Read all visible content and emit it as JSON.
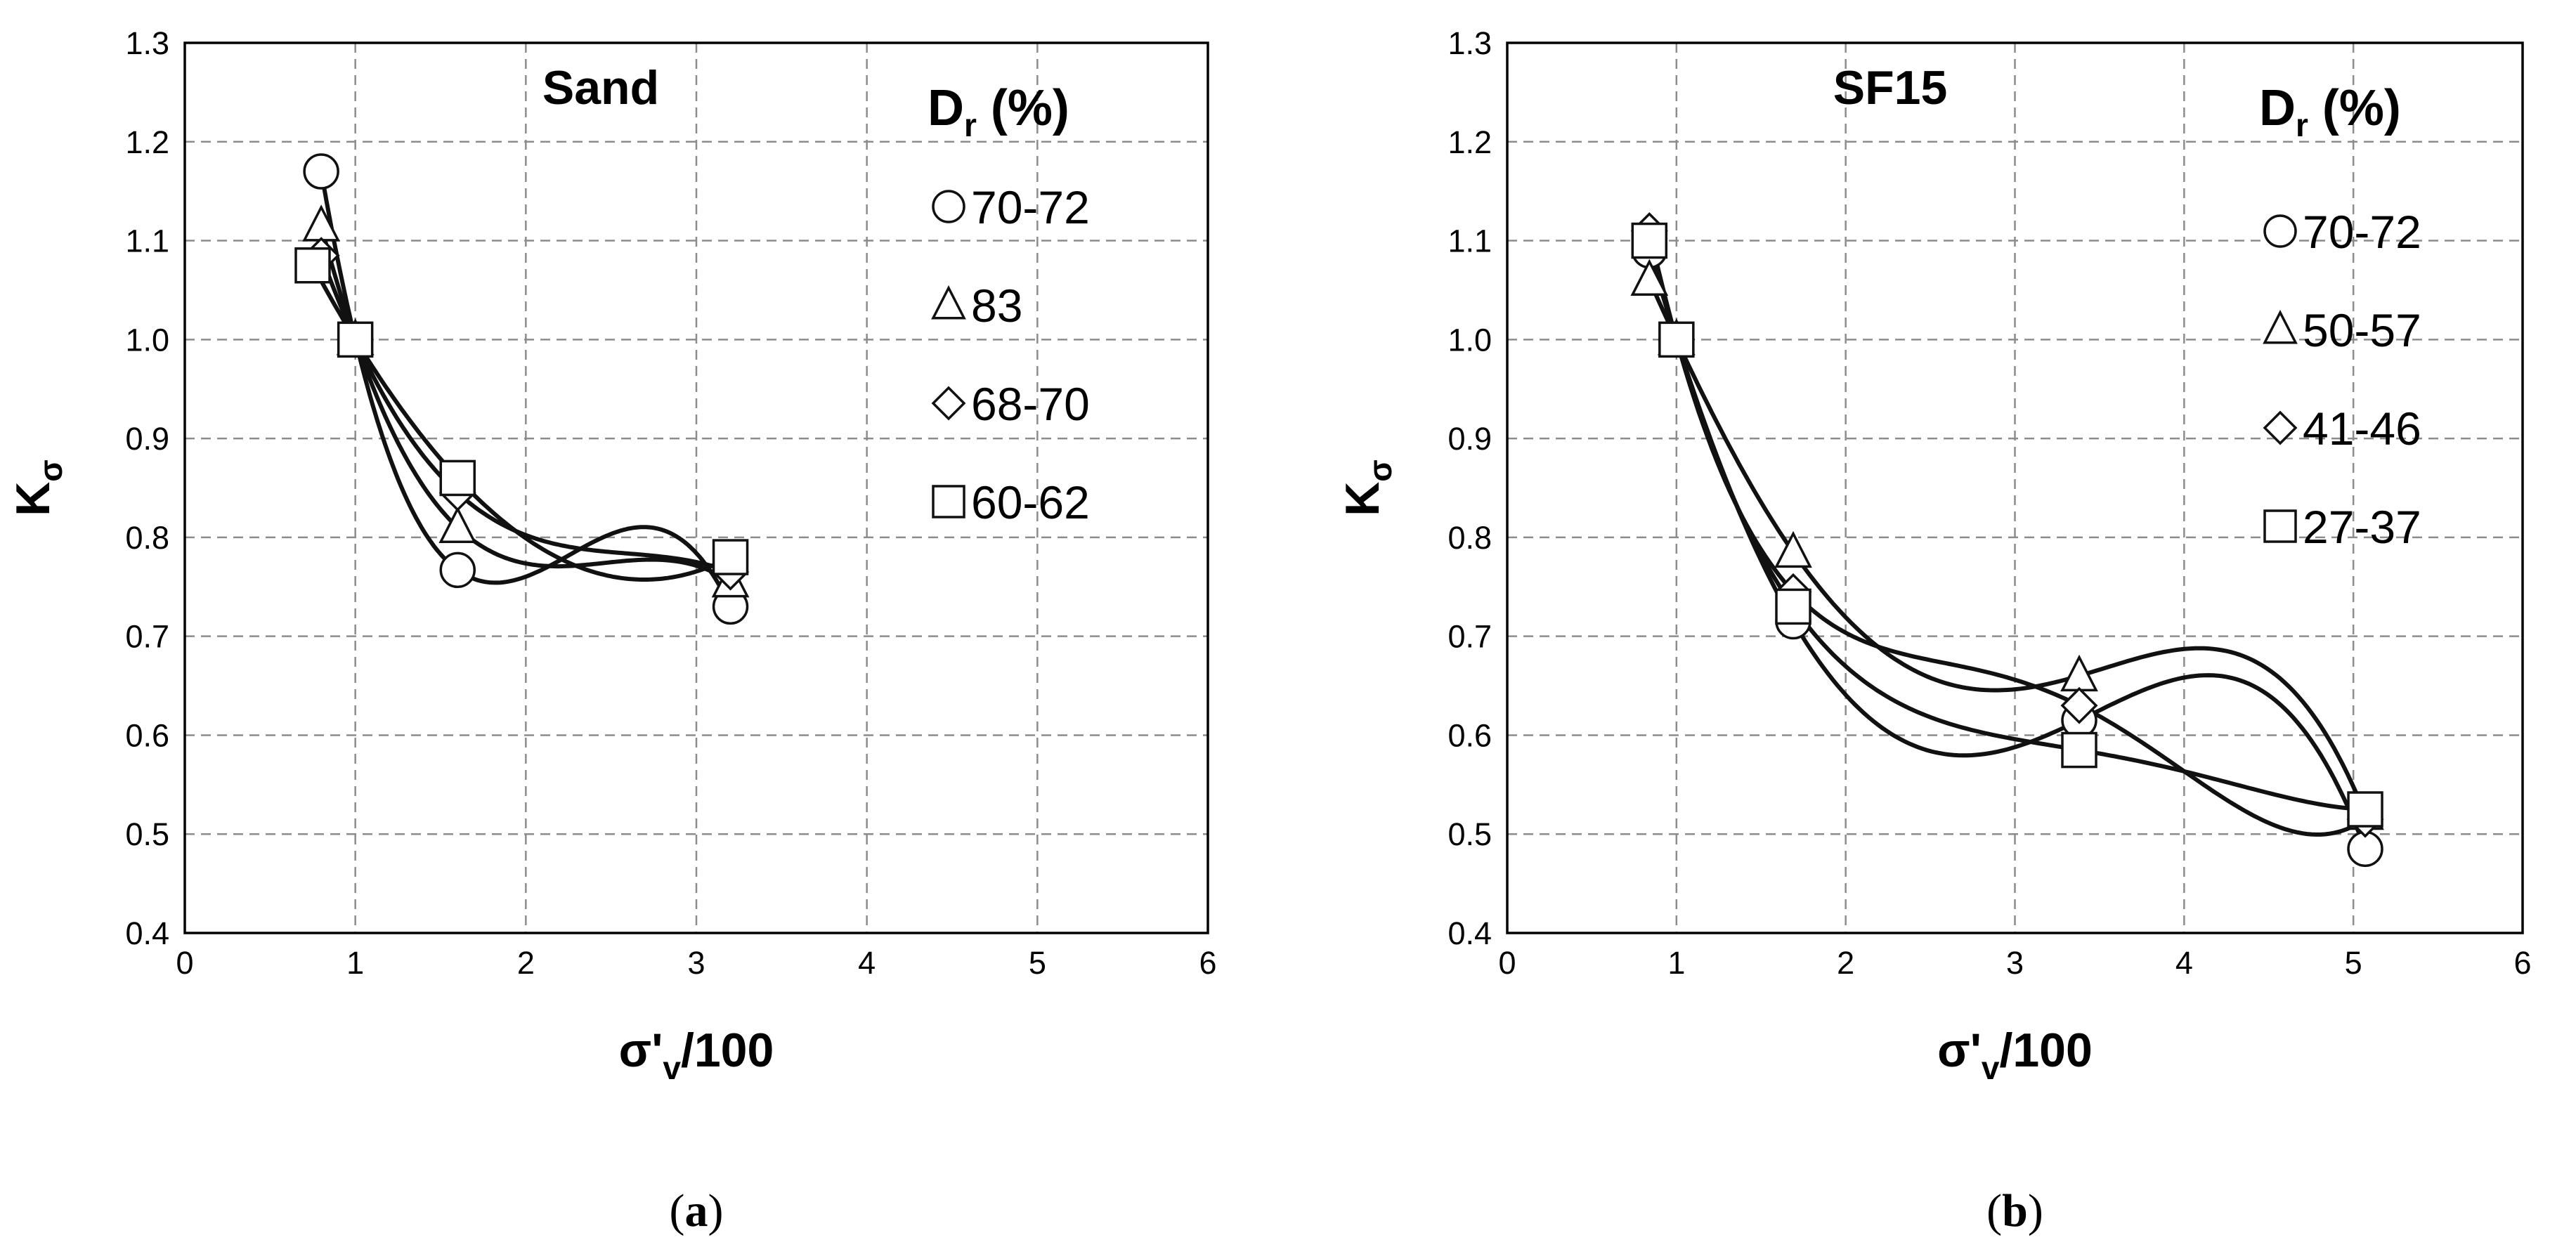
{
  "chart_data": [
    {
      "type": "scatter",
      "panel_caption": "a",
      "title": "Sand",
      "xlabel": "σ'",
      "xlabel_sub": "v",
      "xlabel_suffix": "/100",
      "ylabel": "K",
      "ylabel_sub": "σ",
      "xlim": [
        0,
        6
      ],
      "ylim": [
        0.4,
        1.3
      ],
      "x_ticks": [
        0,
        1,
        2,
        3,
        4,
        5,
        6
      ],
      "y_ticks": [
        0.4,
        0.5,
        0.6,
        0.7,
        0.8,
        0.9,
        1.0,
        1.1,
        1.2,
        1.3
      ],
      "x_tick_labels": [
        "0",
        "1",
        "2",
        "3",
        "4",
        "5",
        "6"
      ],
      "y_tick_labels": [
        "0.4",
        "0.5",
        "0.6",
        "0.7",
        "0.8",
        "0.9",
        "1.0",
        "1.1",
        "1.2",
        "1.3"
      ],
      "grid": true,
      "legend": {
        "title": "D",
        "title_sub": "r",
        "title_suffix": " (%)",
        "placement": "top-right"
      },
      "series": [
        {
          "name": "70-72",
          "marker": "circle",
          "x": [
            0.8,
            1.0,
            1.6,
            3.2
          ],
          "y": [
            1.17,
            1.0,
            0.767,
            0.73
          ]
        },
        {
          "name": "83",
          "marker": "triangle",
          "x": [
            0.8,
            1.0,
            1.6,
            3.2
          ],
          "y": [
            1.115,
            1.0,
            0.81,
            0.755
          ]
        },
        {
          "name": "68-70",
          "marker": "diamond",
          "x": [
            0.8,
            1.0,
            1.6,
            3.2
          ],
          "y": [
            1.085,
            1.0,
            0.845,
            0.765
          ]
        },
        {
          "name": "60-62",
          "marker": "square",
          "x": [
            0.75,
            1.0,
            1.6,
            3.2
          ],
          "y": [
            1.075,
            1.0,
            0.86,
            0.78
          ]
        }
      ]
    },
    {
      "type": "scatter",
      "panel_caption": "b",
      "title": "SF15",
      "xlabel": "σ'",
      "xlabel_sub": "v",
      "xlabel_suffix": "/100",
      "ylabel": "K",
      "ylabel_sub": "σ",
      "xlim": [
        0,
        6
      ],
      "ylim": [
        0.4,
        1.3
      ],
      "x_ticks": [
        0,
        1,
        2,
        3,
        4,
        5,
        6
      ],
      "y_ticks": [
        0.4,
        0.5,
        0.6,
        0.7,
        0.8,
        0.9,
        1.0,
        1.1,
        1.2,
        1.3
      ],
      "x_tick_labels": [
        "0",
        "1",
        "2",
        "3",
        "4",
        "5",
        "6"
      ],
      "y_tick_labels": [
        "0.4",
        "0.5",
        "0.6",
        "0.7",
        "0.8",
        "0.9",
        "1.0",
        "1.1",
        "1.2",
        "1.3"
      ],
      "grid": true,
      "legend": {
        "title": "D",
        "title_sub": "r",
        "title_suffix": " (%)",
        "placement": "top-right"
      },
      "series": [
        {
          "name": "70-72",
          "marker": "circle",
          "x": [
            0.84,
            1.0,
            1.69,
            3.38,
            5.07
          ],
          "y": [
            1.09,
            1.0,
            0.715,
            0.615,
            0.485
          ]
        },
        {
          "name": "50-57",
          "marker": "triangle",
          "x": [
            0.84,
            1.0,
            1.69,
            3.38,
            5.07
          ],
          "y": [
            1.06,
            1.0,
            0.785,
            0.66,
            0.52
          ]
        },
        {
          "name": "41-46",
          "marker": "diamond",
          "x": [
            0.84,
            1.0,
            1.69,
            3.38,
            5.07
          ],
          "y": [
            1.11,
            1.0,
            0.745,
            0.63,
            0.515
          ]
        },
        {
          "name": "27-37",
          "marker": "square",
          "x": [
            0.84,
            1.0,
            1.69,
            3.38,
            5.07
          ],
          "y": [
            1.1,
            1.0,
            0.73,
            0.585,
            0.525
          ]
        }
      ]
    }
  ]
}
